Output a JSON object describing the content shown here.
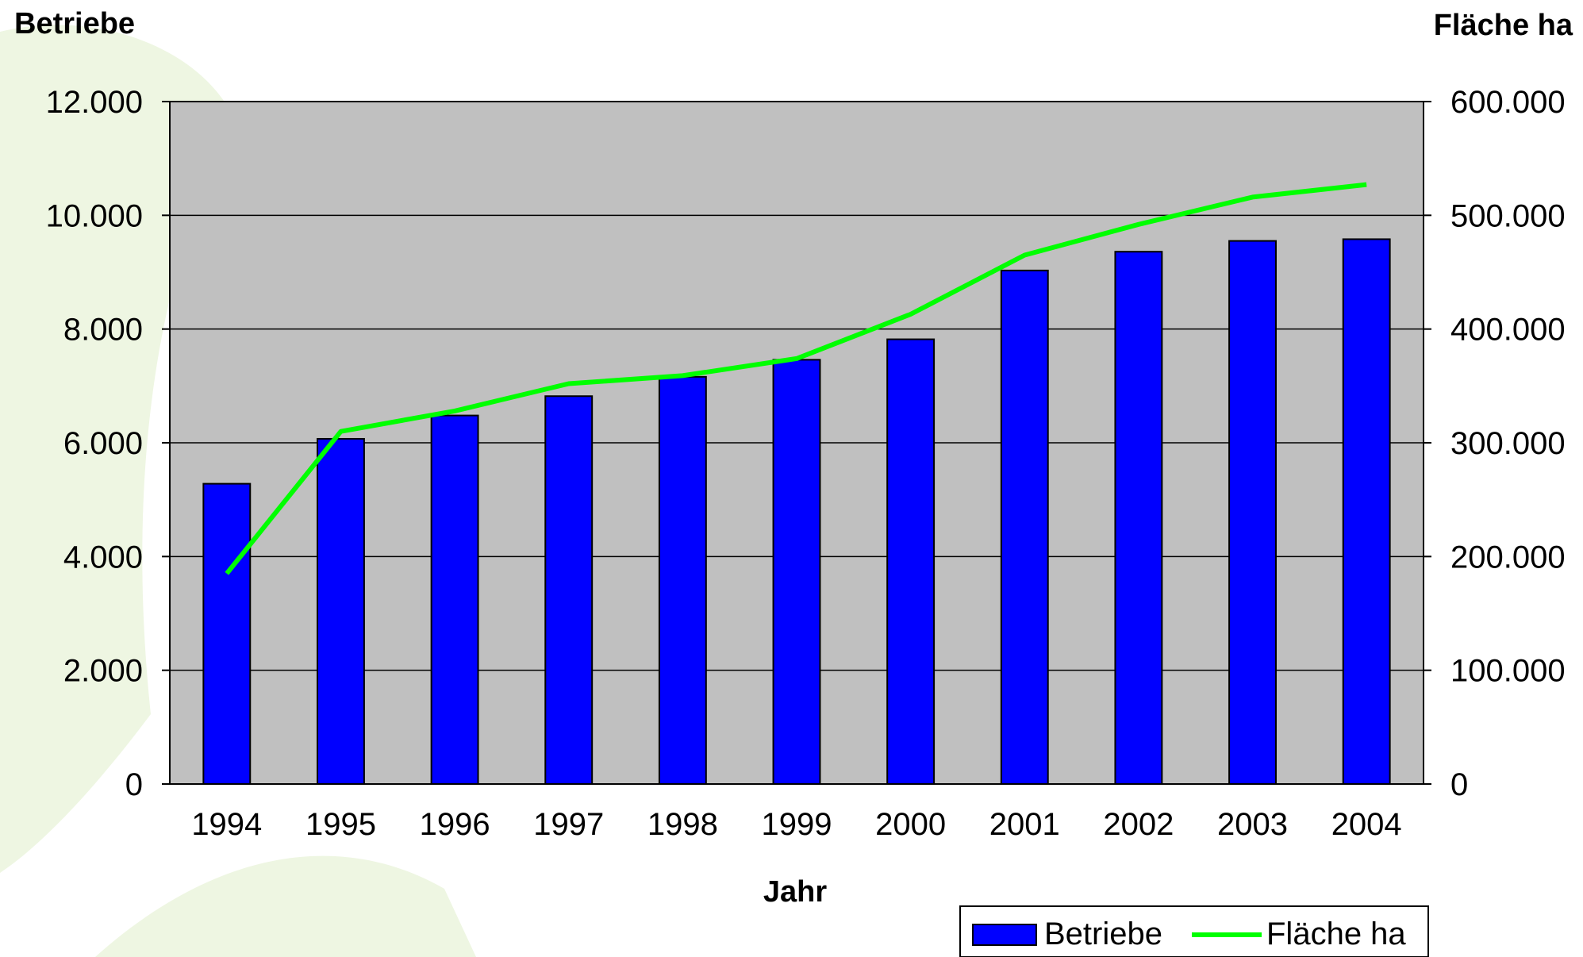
{
  "chart_data": {
    "type": "bar",
    "title": "",
    "xlabel": "Jahr",
    "ylabel": "Betriebe",
    "y2label": "Fläche ha",
    "categories": [
      "1994",
      "1995",
      "1996",
      "1997",
      "1998",
      "1999",
      "2000",
      "2001",
      "2002",
      "2003",
      "2004"
    ],
    "ylim": [
      0,
      12000
    ],
    "y2lim": [
      0,
      600000
    ],
    "yticks": [
      "0",
      "2.000",
      "4.000",
      "6.000",
      "8.000",
      "10.000",
      "12.000"
    ],
    "y2ticks": [
      "0",
      "100.000",
      "200.000",
      "300.000",
      "400.000",
      "500.000",
      "600.000"
    ],
    "grid": true,
    "legend_position": "bottom-right",
    "series": [
      {
        "name": "Betriebe",
        "type": "bar",
        "axis": "left",
        "color": "#0000ff",
        "values": [
          5280,
          6070,
          6480,
          6820,
          7160,
          7460,
          7820,
          9030,
          9360,
          9550,
          9580
        ]
      },
      {
        "name": "Fläche ha",
        "type": "line",
        "axis": "right",
        "color": "#00ff00",
        "values": [
          185000,
          310000,
          328000,
          352000,
          359000,
          374000,
          413000,
          465000,
          492000,
          516000,
          527000
        ]
      }
    ],
    "colors": {
      "plot_background": "#c0c0c0",
      "gridline": "#000000",
      "page_background": "#ffffff",
      "decoration_leaf": "#e8f2d8"
    }
  }
}
